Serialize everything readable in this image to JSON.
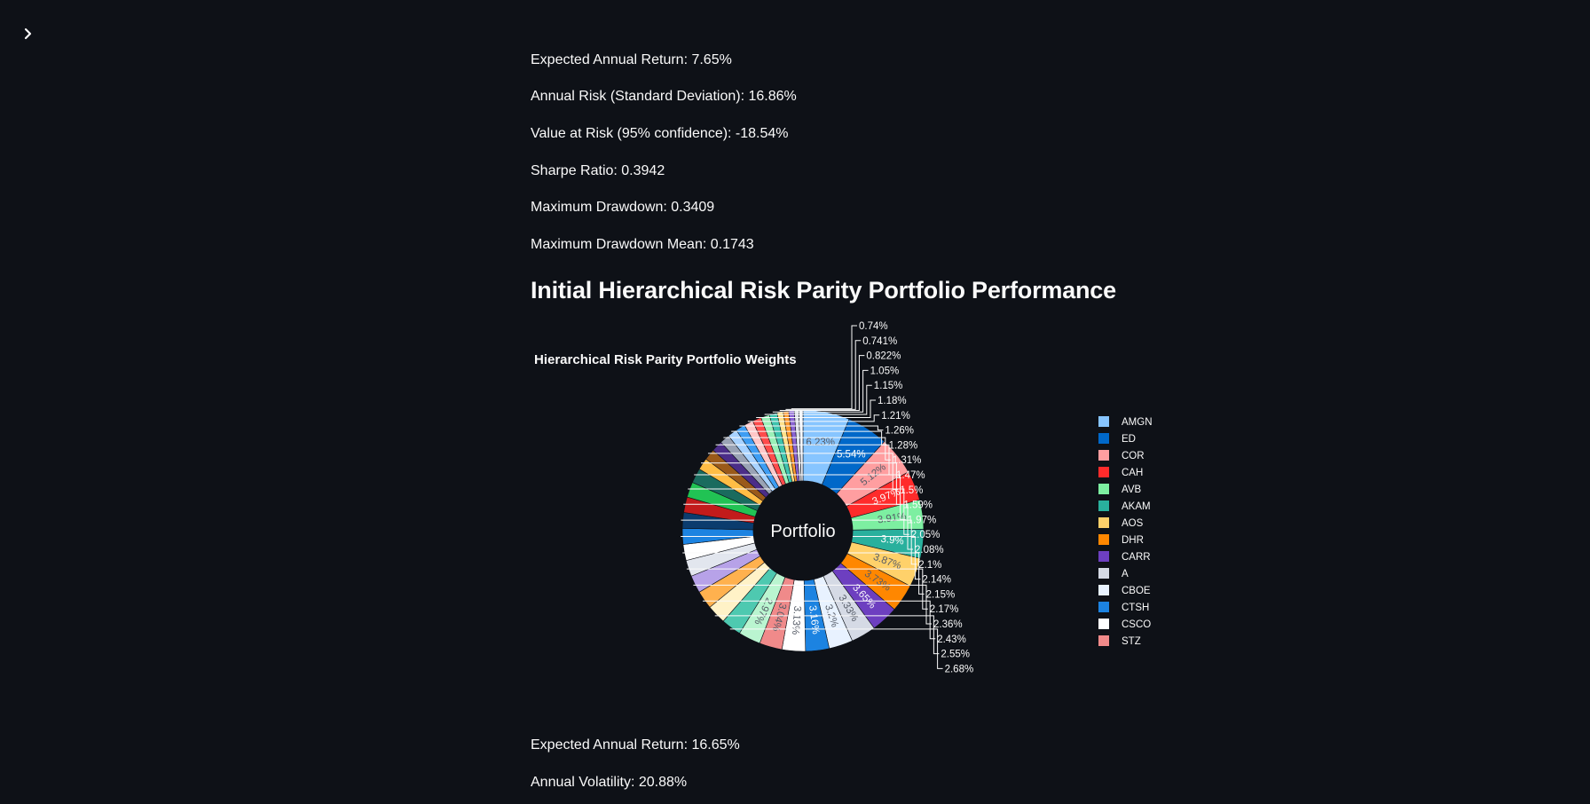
{
  "sidebar": {
    "toggle_icon": "chevron-right-icon"
  },
  "stats_top": [
    {
      "label": "Expected Annual Return: 7.65%"
    },
    {
      "label": "Annual Risk (Standard Deviation): 16.86%"
    },
    {
      "label": "Value at Risk (95% confidence): -18.54%"
    },
    {
      "label": "Sharpe Ratio: 0.3942"
    },
    {
      "label": "Maximum Drawdown: 0.3409"
    },
    {
      "label": "Maximum Drawdown Mean: 0.1743"
    }
  ],
  "section_title": "Initial Hierarchical Risk Parity Portfolio Performance",
  "stats_bottom": [
    {
      "label": "Expected Annual Return: 16.65%"
    },
    {
      "label": "Annual Volatility: 20.88%"
    }
  ],
  "chart_data": {
    "type": "pie",
    "title": "Hierarchical Risk Parity Portfolio Weights",
    "center_label": "Portfolio",
    "hole": 0.4,
    "legend_placement": "right",
    "slices": [
      {
        "label": "AMGN",
        "value": 6.23,
        "text": "6.23%",
        "color": "#87c5ff"
      },
      {
        "label": "ED",
        "value": 5.54,
        "text": "5.54%",
        "color": "#0068c9"
      },
      {
        "label": "COR",
        "value": 5.12,
        "text": "5.12%",
        "color": "#ff9ea0"
      },
      {
        "label": "CAH",
        "value": 3.97,
        "text": "3.97%",
        "color": "#ff2b2b"
      },
      {
        "label": "AVB",
        "value": 3.91,
        "text": "3.91%",
        "color": "#7defa1"
      },
      {
        "label": "AKAM",
        "value": 3.9,
        "text": "3.9%",
        "color": "#29b09d"
      },
      {
        "label": "AOS",
        "value": 3.87,
        "text": "3.87%",
        "color": "#ffd16a"
      },
      {
        "label": "DHR",
        "value": 3.73,
        "text": "3.73%",
        "color": "#ff8700"
      },
      {
        "label": "CARR",
        "value": 3.65,
        "text": "3.65%",
        "color": "#6d3fc0"
      },
      {
        "label": "A",
        "value": 3.33,
        "text": "3.33%",
        "color": "#d5dae5"
      },
      {
        "label": "CBOE",
        "value": 3.2,
        "text": "3.2%",
        "color": "#e8f2ff"
      },
      {
        "label": "CTSH",
        "value": 3.16,
        "text": "3.16%",
        "color": "#1c83e1"
      },
      {
        "label": "CSCO",
        "value": 3.13,
        "text": "3.13%",
        "color": "#ffffff"
      },
      {
        "label": "STZ",
        "value": 3.04,
        "text": "3.04%",
        "color": "#f08a8a"
      },
      {
        "label": "",
        "value": 2.97,
        "text": "2.97%",
        "color": "#baf5d0"
      },
      {
        "label": "",
        "value": 2.68,
        "text": "2.68%",
        "color": "#4ec9b0"
      },
      {
        "label": "",
        "value": 2.55,
        "text": "2.55%",
        "color": "#fff2c7"
      },
      {
        "label": "",
        "value": 2.43,
        "text": "2.43%",
        "color": "#ffb14e"
      },
      {
        "label": "",
        "value": 2.36,
        "text": "2.36%",
        "color": "#b7a2e8"
      },
      {
        "label": "",
        "value": 2.17,
        "text": "2.17%",
        "color": "#e2e6ee"
      },
      {
        "label": "",
        "value": 2.15,
        "text": "2.15%",
        "color": "#ffffff"
      },
      {
        "label": "",
        "value": 2.14,
        "text": "2.14%",
        "color": "#1c83e1"
      },
      {
        "label": "",
        "value": 2.1,
        "text": "2.1%",
        "color": "#0b3c6e"
      },
      {
        "label": "",
        "value": 2.08,
        "text": "2.08%",
        "color": "#c21b1b"
      },
      {
        "label": "",
        "value": 2.05,
        "text": "2.05%",
        "color": "#21c354"
      },
      {
        "label": "",
        "value": 1.97,
        "text": "1.97%",
        "color": "#1a6b5e"
      },
      {
        "label": "",
        "value": 1.59,
        "text": "1.59%",
        "color": "#ffbd45"
      },
      {
        "label": "",
        "value": 1.5,
        "text": "1.5%",
        "color": "#9a5a1a"
      },
      {
        "label": "",
        "value": 1.47,
        "text": "1.47%",
        "color": "#4b2d88"
      },
      {
        "label": "",
        "value": 1.31,
        "text": "1.31%",
        "color": "#9aa3b5"
      },
      {
        "label": "",
        "value": 1.28,
        "text": "1.28%",
        "color": "#a8d2ff"
      },
      {
        "label": "",
        "value": 1.26,
        "text": "1.26%",
        "color": "#3d9df3"
      },
      {
        "label": "",
        "value": 1.21,
        "text": "1.21%",
        "color": "#ffc7c8"
      },
      {
        "label": "",
        "value": 1.18,
        "text": "1.18%",
        "color": "#ff4b4b"
      },
      {
        "label": "",
        "value": 1.15,
        "text": "1.15%",
        "color": "#9af0b8"
      },
      {
        "label": "",
        "value": 1.05,
        "text": "1.05%",
        "color": "#3ec3ae"
      },
      {
        "label": "",
        "value": 0.822,
        "text": "0.822%",
        "color": "#ffe08a"
      },
      {
        "label": "",
        "value": 0.741,
        "text": "0.741%",
        "color": "#ff9a2e"
      },
      {
        "label": "",
        "value": 0.74,
        "text": "0.74%",
        "color": "#8a63d2"
      },
      {
        "label": "",
        "value": 0.6,
        "text": "",
        "color": "#dfe3eb"
      },
      {
        "label": "",
        "value": 0.55,
        "text": "",
        "color": "#f5f8ff"
      }
    ]
  }
}
